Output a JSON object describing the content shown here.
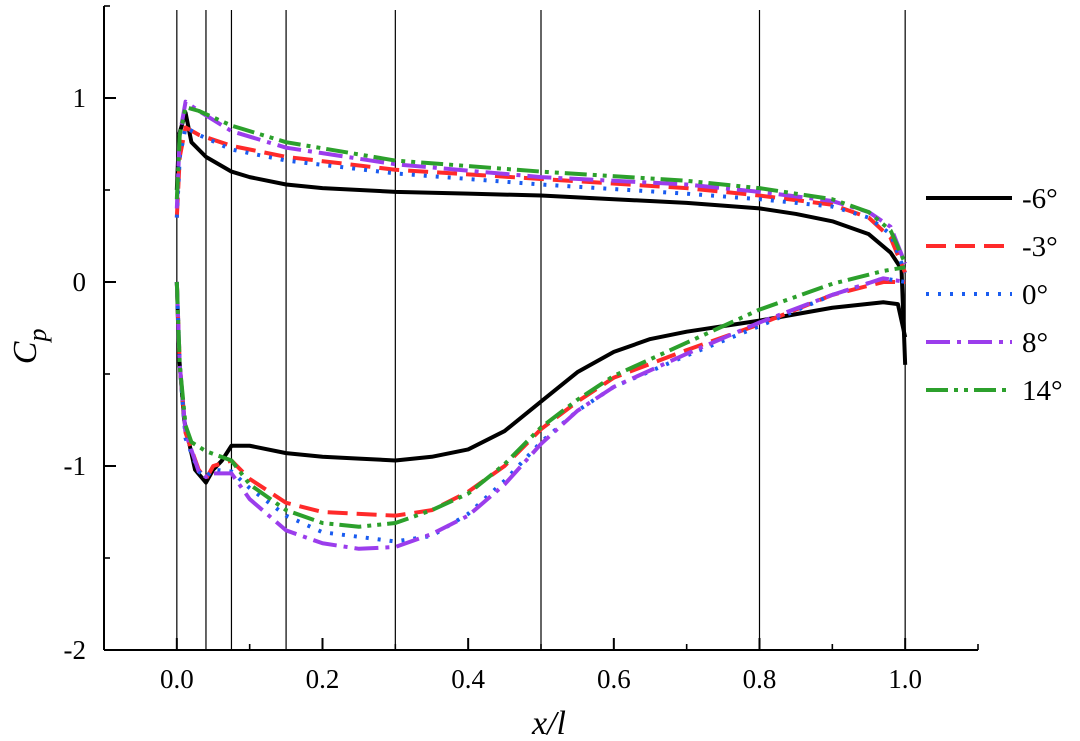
{
  "chart_data": {
    "type": "line",
    "xlabel": "x/l",
    "ylabel_main": "C",
    "ylabel_sub": "p",
    "xlim": [
      -0.1,
      1.1
    ],
    "ylim": [
      -2,
      1.5
    ],
    "x_ticks": [
      0.0,
      0.2,
      0.4,
      0.6,
      0.8,
      1.0
    ],
    "x_tick_labels": [
      "0.0",
      "0.2",
      "0.4",
      "0.6",
      "0.8",
      "1.0"
    ],
    "y_ticks": [
      1,
      0,
      -1,
      -2
    ],
    "y_tick_labels": [
      "1",
      "0",
      "-1",
      "-2"
    ],
    "reference_lines_x": [
      0.0,
      0.04,
      0.075,
      0.15,
      0.3,
      0.5,
      0.8,
      1.0
    ],
    "legend_position": "right",
    "series": [
      {
        "name": "-6°",
        "color": "#000000",
        "dash": "solid",
        "upper": [
          [
            0,
            0.5
          ],
          [
            0.003,
            0.8
          ],
          [
            0.012,
            0.92
          ],
          [
            0.02,
            0.76
          ],
          [
            0.04,
            0.68
          ],
          [
            0.075,
            0.6
          ],
          [
            0.1,
            0.57
          ],
          [
            0.15,
            0.53
          ],
          [
            0.2,
            0.51
          ],
          [
            0.3,
            0.49
          ],
          [
            0.4,
            0.48
          ],
          [
            0.5,
            0.47
          ],
          [
            0.6,
            0.45
          ],
          [
            0.7,
            0.43
          ],
          [
            0.8,
            0.4
          ],
          [
            0.85,
            0.37
          ],
          [
            0.9,
            0.33
          ],
          [
            0.95,
            0.26
          ],
          [
            0.98,
            0.16
          ],
          [
            0.995,
            0.07
          ],
          [
            1.0,
            -0.45
          ]
        ],
        "lower": [
          [
            0,
            0.0
          ],
          [
            0.003,
            -0.4
          ],
          [
            0.01,
            -0.75
          ],
          [
            0.025,
            -1.02
          ],
          [
            0.04,
            -1.09
          ],
          [
            0.05,
            -1.02
          ],
          [
            0.062,
            -0.97
          ],
          [
            0.075,
            -0.89
          ],
          [
            0.1,
            -0.89
          ],
          [
            0.15,
            -0.93
          ],
          [
            0.2,
            -0.95
          ],
          [
            0.25,
            -0.96
          ],
          [
            0.3,
            -0.97
          ],
          [
            0.35,
            -0.95
          ],
          [
            0.4,
            -0.91
          ],
          [
            0.45,
            -0.81
          ],
          [
            0.5,
            -0.65
          ],
          [
            0.55,
            -0.49
          ],
          [
            0.6,
            -0.38
          ],
          [
            0.65,
            -0.31
          ],
          [
            0.7,
            -0.27
          ],
          [
            0.8,
            -0.21
          ],
          [
            0.9,
            -0.14
          ],
          [
            0.97,
            -0.11
          ],
          [
            0.99,
            -0.12
          ],
          [
            1.0,
            -0.3
          ]
        ]
      },
      {
        "name": "-3°",
        "color": "#ff2a2a",
        "dash": "20 9",
        "upper": [
          [
            0,
            0.35
          ],
          [
            0.004,
            0.68
          ],
          [
            0.012,
            0.84
          ],
          [
            0.03,
            0.8
          ],
          [
            0.075,
            0.74
          ],
          [
            0.15,
            0.68
          ],
          [
            0.3,
            0.61
          ],
          [
            0.5,
            0.56
          ],
          [
            0.7,
            0.51
          ],
          [
            0.8,
            0.47
          ],
          [
            0.9,
            0.42
          ],
          [
            0.95,
            0.35
          ],
          [
            0.98,
            0.24
          ],
          [
            1.0,
            0.05
          ]
        ],
        "lower": [
          [
            0,
            0.0
          ],
          [
            0.004,
            -0.45
          ],
          [
            0.012,
            -0.82
          ],
          [
            0.03,
            -1.02
          ],
          [
            0.04,
            -1.07
          ],
          [
            0.05,
            -1.0
          ],
          [
            0.075,
            -0.97
          ],
          [
            0.1,
            -1.07
          ],
          [
            0.15,
            -1.2
          ],
          [
            0.2,
            -1.25
          ],
          [
            0.3,
            -1.27
          ],
          [
            0.35,
            -1.24
          ],
          [
            0.4,
            -1.14
          ],
          [
            0.45,
            -1.0
          ],
          [
            0.5,
            -0.8
          ],
          [
            0.55,
            -0.65
          ],
          [
            0.6,
            -0.52
          ],
          [
            0.7,
            -0.37
          ],
          [
            0.8,
            -0.23
          ],
          [
            0.9,
            -0.07
          ],
          [
            0.97,
            0.0
          ],
          [
            1.0,
            0.0
          ]
        ]
      },
      {
        "name": "0°",
        "color": "#1a5cf0",
        "dash": "3 9",
        "upper": [
          [
            0,
            0.35
          ],
          [
            0.004,
            0.68
          ],
          [
            0.012,
            0.84
          ],
          [
            0.03,
            0.8
          ],
          [
            0.075,
            0.72
          ],
          [
            0.15,
            0.66
          ],
          [
            0.3,
            0.59
          ],
          [
            0.5,
            0.53
          ],
          [
            0.7,
            0.48
          ],
          [
            0.8,
            0.45
          ],
          [
            0.9,
            0.41
          ],
          [
            0.95,
            0.35
          ],
          [
            0.98,
            0.26
          ],
          [
            1.0,
            0.05
          ]
        ],
        "lower": [
          [
            0,
            0.0
          ],
          [
            0.004,
            -0.45
          ],
          [
            0.012,
            -0.85
          ],
          [
            0.03,
            -1.03
          ],
          [
            0.04,
            -1.06
          ],
          [
            0.05,
            -1.02
          ],
          [
            0.075,
            -1.03
          ],
          [
            0.1,
            -1.12
          ],
          [
            0.15,
            -1.27
          ],
          [
            0.2,
            -1.36
          ],
          [
            0.3,
            -1.41
          ],
          [
            0.35,
            -1.38
          ],
          [
            0.4,
            -1.26
          ],
          [
            0.45,
            -1.08
          ],
          [
            0.5,
            -0.87
          ],
          [
            0.55,
            -0.7
          ],
          [
            0.6,
            -0.57
          ],
          [
            0.7,
            -0.4
          ],
          [
            0.8,
            -0.24
          ],
          [
            0.9,
            -0.07
          ],
          [
            0.97,
            0.02
          ],
          [
            1.0,
            0.0
          ]
        ]
      },
      {
        "name": "8°",
        "color": "#9b3dec",
        "dash": "24 7 4 7",
        "upper": [
          [
            0,
            0.4
          ],
          [
            0.004,
            0.8
          ],
          [
            0.012,
            0.98
          ],
          [
            0.03,
            0.93
          ],
          [
            0.075,
            0.82
          ],
          [
            0.15,
            0.73
          ],
          [
            0.3,
            0.64
          ],
          [
            0.5,
            0.57
          ],
          [
            0.7,
            0.53
          ],
          [
            0.8,
            0.49
          ],
          [
            0.9,
            0.44
          ],
          [
            0.95,
            0.38
          ],
          [
            0.98,
            0.3
          ],
          [
            1.0,
            0.1
          ]
        ],
        "lower": [
          [
            0,
            0.0
          ],
          [
            0.004,
            -0.45
          ],
          [
            0.012,
            -0.82
          ],
          [
            0.03,
            -1.03
          ],
          [
            0.04,
            -1.06
          ],
          [
            0.05,
            -1.04
          ],
          [
            0.075,
            -1.04
          ],
          [
            0.1,
            -1.18
          ],
          [
            0.15,
            -1.35
          ],
          [
            0.2,
            -1.42
          ],
          [
            0.25,
            -1.45
          ],
          [
            0.3,
            -1.44
          ],
          [
            0.35,
            -1.37
          ],
          [
            0.4,
            -1.27
          ],
          [
            0.45,
            -1.1
          ],
          [
            0.5,
            -0.88
          ],
          [
            0.55,
            -0.7
          ],
          [
            0.6,
            -0.57
          ],
          [
            0.7,
            -0.39
          ],
          [
            0.8,
            -0.22
          ],
          [
            0.9,
            -0.07
          ],
          [
            0.97,
            0.02
          ],
          [
            1.0,
            0.0
          ]
        ]
      },
      {
        "name": "14°",
        "color": "#2ca02c",
        "dash": "22 6 4 6 4 6",
        "upper": [
          [
            0,
            0.45
          ],
          [
            0.004,
            0.8
          ],
          [
            0.012,
            0.95
          ],
          [
            0.03,
            0.93
          ],
          [
            0.075,
            0.85
          ],
          [
            0.15,
            0.76
          ],
          [
            0.3,
            0.66
          ],
          [
            0.5,
            0.6
          ],
          [
            0.7,
            0.55
          ],
          [
            0.8,
            0.51
          ],
          [
            0.9,
            0.45
          ],
          [
            0.95,
            0.38
          ],
          [
            0.98,
            0.28
          ],
          [
            1.0,
            0.1
          ]
        ],
        "lower": [
          [
            0,
            0.0
          ],
          [
            0.004,
            -0.45
          ],
          [
            0.012,
            -0.78
          ],
          [
            0.02,
            -0.87
          ],
          [
            0.04,
            -0.92
          ],
          [
            0.075,
            -0.97
          ],
          [
            0.1,
            -1.1
          ],
          [
            0.15,
            -1.24
          ],
          [
            0.2,
            -1.31
          ],
          [
            0.25,
            -1.33
          ],
          [
            0.3,
            -1.31
          ],
          [
            0.35,
            -1.24
          ],
          [
            0.4,
            -1.15
          ],
          [
            0.45,
            -0.99
          ],
          [
            0.5,
            -0.79
          ],
          [
            0.55,
            -0.64
          ],
          [
            0.6,
            -0.51
          ],
          [
            0.7,
            -0.33
          ],
          [
            0.8,
            -0.15
          ],
          [
            0.9,
            -0.01
          ],
          [
            0.97,
            0.06
          ],
          [
            1.0,
            0.08
          ]
        ]
      }
    ]
  }
}
